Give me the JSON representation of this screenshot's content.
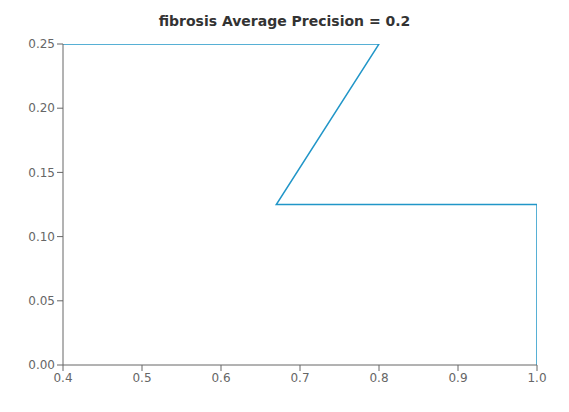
{
  "chart_data": {
    "type": "line",
    "title": "fibrosis Average Precision = 0.2",
    "x": [
      0.4,
      0.8,
      0.67,
      1.0,
      1.0
    ],
    "values": [
      0.25,
      0.25,
      0.125,
      0.125,
      0.0
    ],
    "color": "#2196c8",
    "xlim": [
      0.4,
      1.0
    ],
    "ylim": [
      0,
      0.25
    ],
    "xticks": [
      0.4,
      0.5,
      0.6,
      0.7,
      0.8,
      0.9,
      {
        "value": 1.0,
        "label": "1.0"
      }
    ],
    "yticks": [
      {
        "value": 0,
        "label": "0.00"
      },
      0.05,
      {
        "value": 0.1,
        "label": "0.10"
      },
      0.15,
      {
        "value": 0.2,
        "label": "0.20"
      },
      0.25
    ],
    "grid": false
  }
}
